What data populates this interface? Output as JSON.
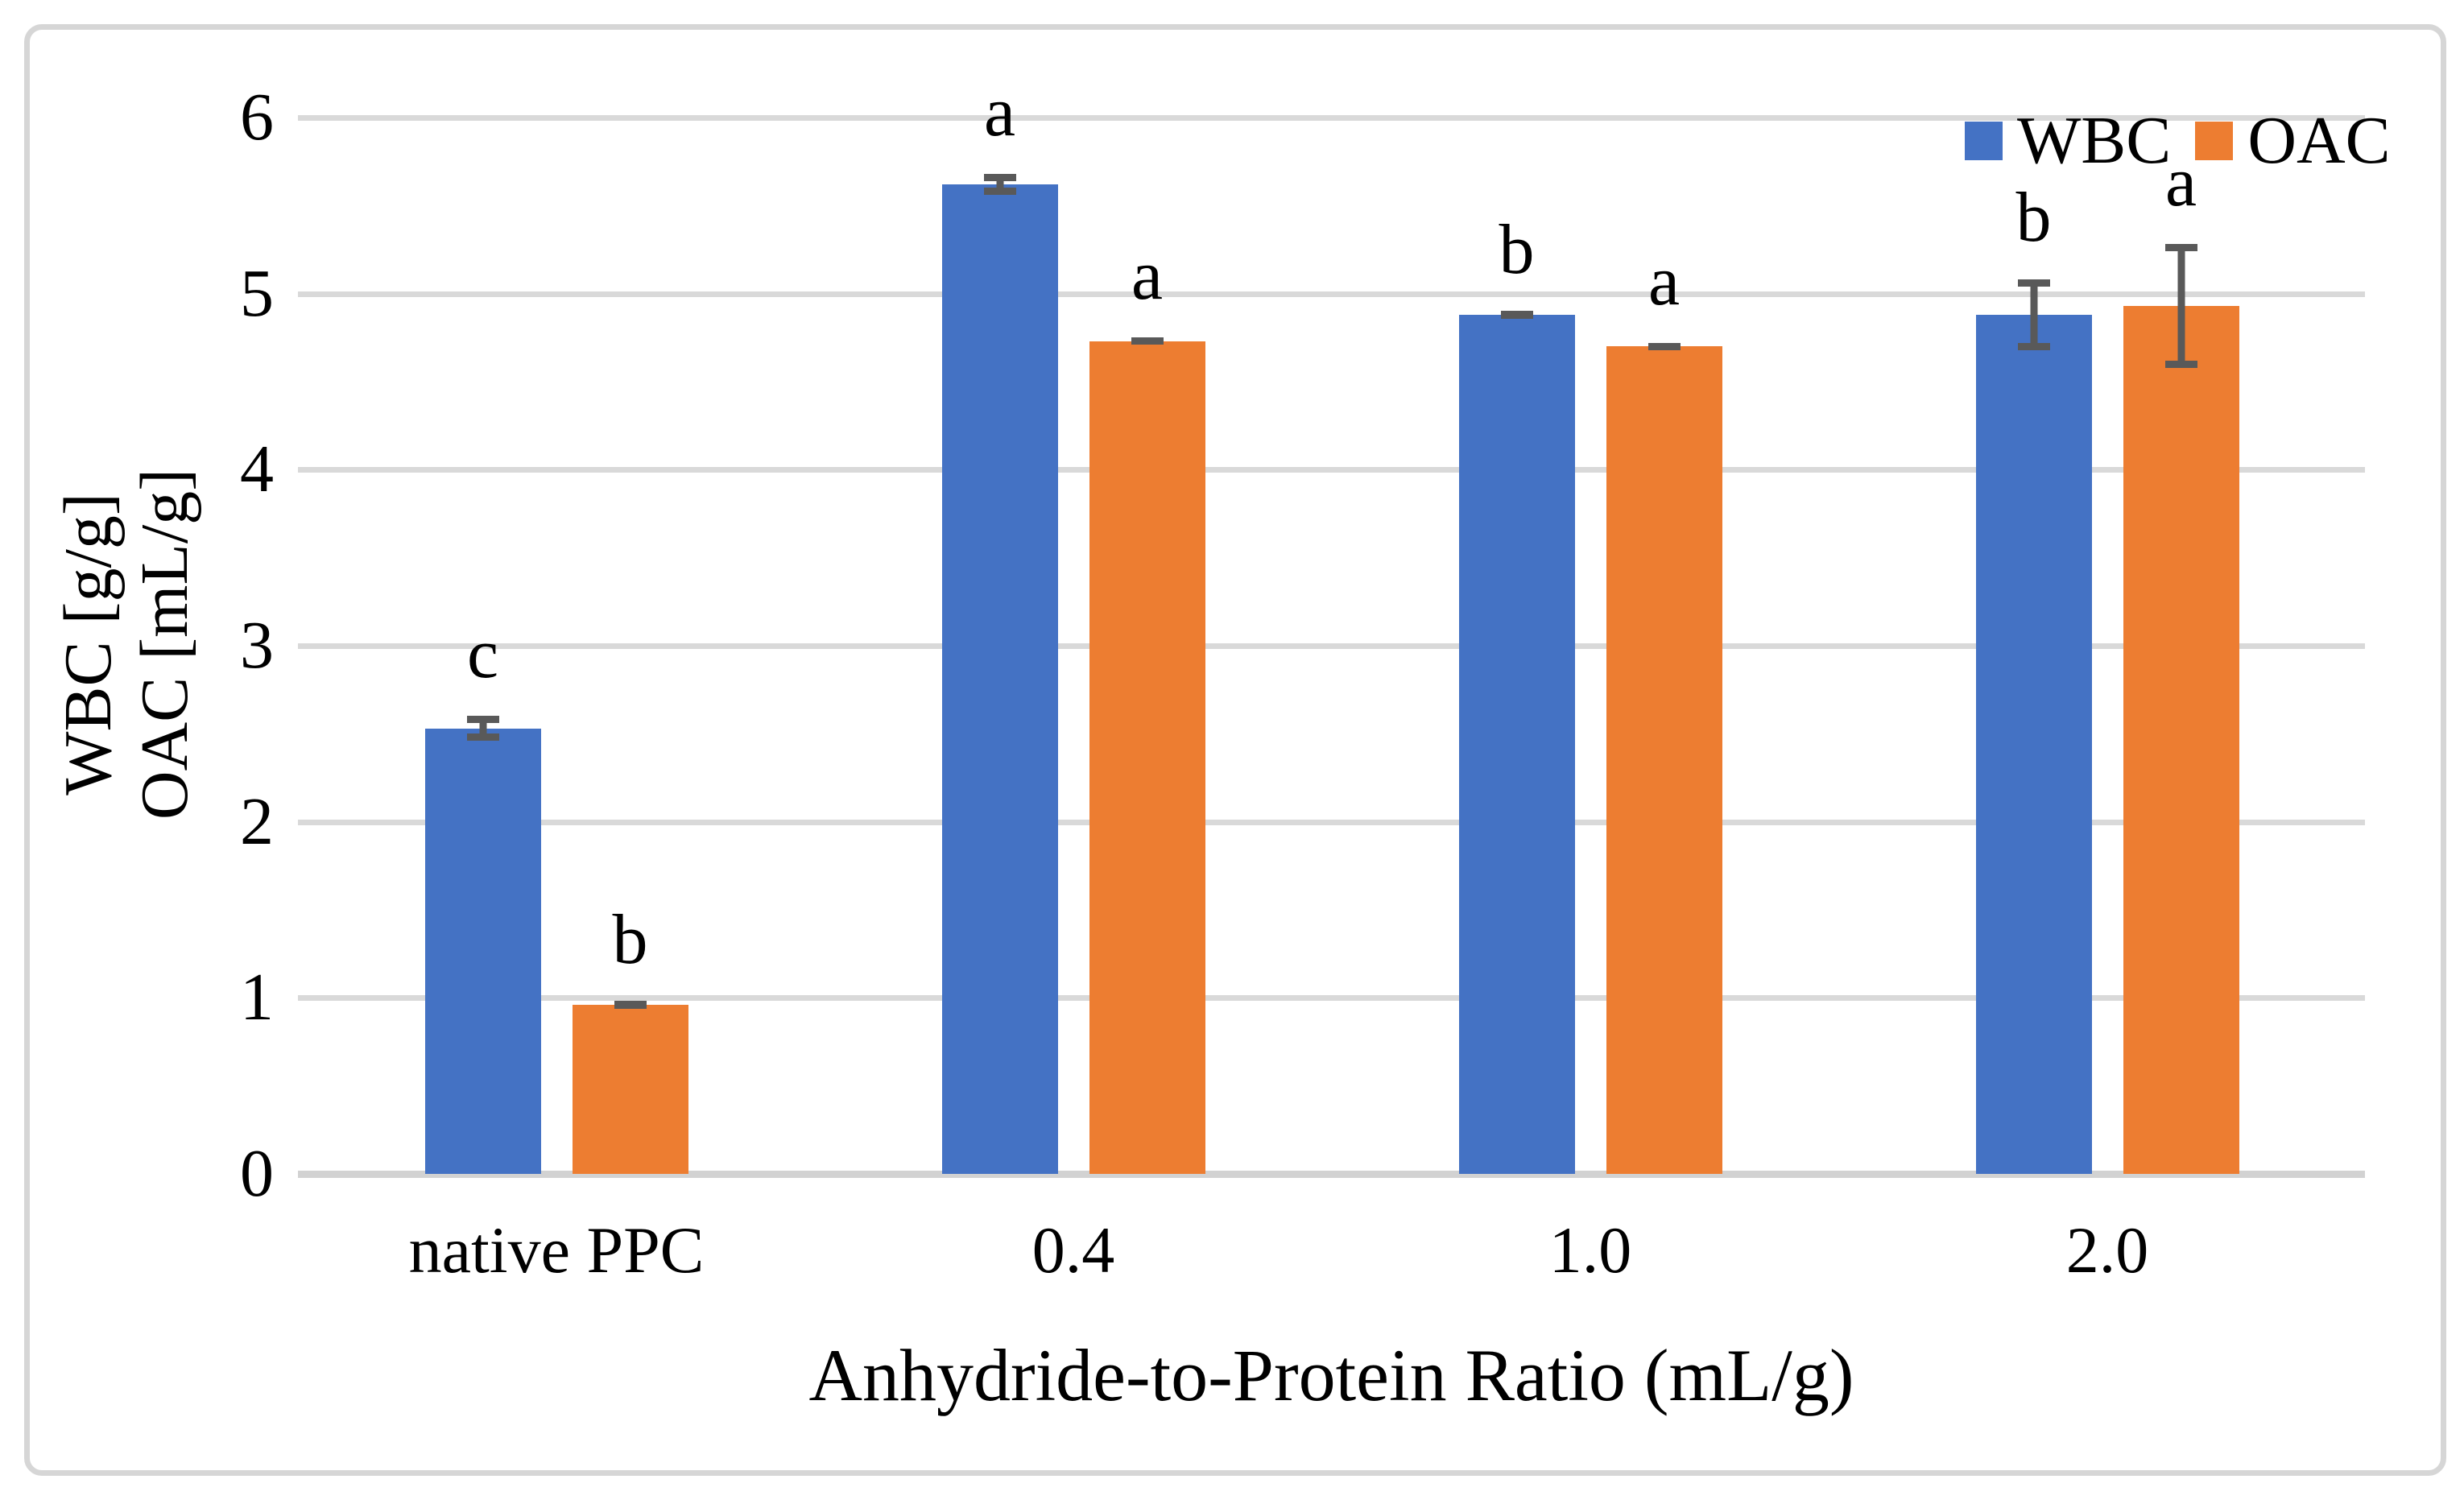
{
  "chart_data": {
    "type": "bar",
    "categories": [
      "native PPC",
      "0.4",
      "1.0",
      "2.0"
    ],
    "series": [
      {
        "name": "WBC",
        "color": "#4472C4",
        "values": [
          2.53,
          5.62,
          4.88,
          4.88
        ],
        "errors": [
          0.07,
          0.06,
          0.02,
          0.2
        ],
        "letters": [
          "c",
          "a",
          "b",
          "b"
        ]
      },
      {
        "name": "OAC",
        "color": "#ED7D31",
        "values": [
          0.96,
          4.73,
          4.7,
          4.93
        ],
        "errors": [
          0.02,
          0.02,
          0.02,
          0.35
        ],
        "letters": [
          "b",
          "a",
          "a",
          "a"
        ]
      }
    ],
    "xlabel": "Anhydride-to-Protein Ratio (mL/g)",
    "ylabel_lines": [
      "WBC [g/g]",
      "OAC [mL/g]"
    ],
    "ylim": [
      0,
      6
    ],
    "yticks": [
      0,
      1,
      2,
      3,
      4,
      5,
      6
    ],
    "grid": true,
    "legend_position": "top-right",
    "error_bar_color": "#595959",
    "gridline_color": "#D9D9D9",
    "bar_colors": {
      "WBC": "#4472C4",
      "OAC": "#ED7D31"
    }
  }
}
